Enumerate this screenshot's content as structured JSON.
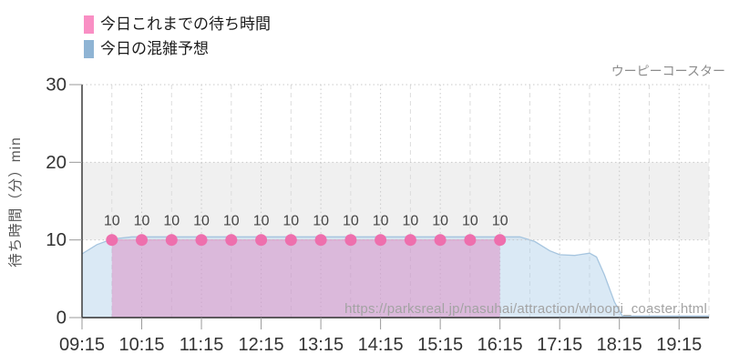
{
  "title": "ウーピーコースター",
  "legend": {
    "actual": "今日これまでの待ち時間",
    "forecast": "今日の混雑予想"
  },
  "watermark": "https://parksreal.jp/nasuhai/attraction/whoopi_coaster.html",
  "chart_data": {
    "type": "area",
    "ylabel": "待ち時間（分）min",
    "y_ticks": [
      0,
      10,
      20,
      30
    ],
    "y_max": 30,
    "band": {
      "from": 10,
      "to": 20
    },
    "x_ticks": [
      "09:15",
      "10:15",
      "11:15",
      "12:15",
      "13:15",
      "14:15",
      "15:15",
      "16:15",
      "17:15",
      "18:15",
      "19:15"
    ],
    "x_range": {
      "start": "09:15",
      "end": "19:45"
    },
    "minor_grid_interval_minutes": 30,
    "grid": true,
    "legend_position": "top-left",
    "series": [
      {
        "id": "forecast",
        "name": "今日の混雑予想",
        "points": [
          [
            "09:15",
            8.2
          ],
          [
            "09:30",
            9.4
          ],
          [
            "09:45",
            10.1
          ],
          [
            "10:05",
            10.4
          ],
          [
            "16:35",
            10.4
          ],
          [
            "16:50",
            9.8
          ],
          [
            "17:05",
            8.6
          ],
          [
            "17:15",
            8.1
          ],
          [
            "17:30",
            8.0
          ],
          [
            "17:45",
            8.3
          ],
          [
            "17:52",
            7.8
          ],
          [
            "18:00",
            5.5
          ],
          [
            "18:10",
            2.0
          ],
          [
            "18:18",
            0.2
          ],
          [
            "19:45",
            0.2
          ]
        ]
      },
      {
        "id": "actual",
        "name": "今日これまでの待ち時間",
        "points": [
          [
            "09:45",
            10
          ],
          [
            "10:15",
            10
          ],
          [
            "10:45",
            10
          ],
          [
            "11:15",
            10
          ],
          [
            "11:45",
            10
          ],
          [
            "12:15",
            10
          ],
          [
            "12:45",
            10
          ],
          [
            "13:15",
            10
          ],
          [
            "13:45",
            10
          ],
          [
            "14:15",
            10
          ],
          [
            "14:45",
            10
          ],
          [
            "15:15",
            10
          ],
          [
            "15:45",
            10
          ],
          [
            "16:15",
            10
          ]
        ],
        "point_labels": true
      }
    ],
    "colors": {
      "actual_dot": "#ee6fad",
      "actual_line": "#e87db8",
      "actual_fill": "rgba(221,118,183,0.42)",
      "forecast_line": "#a6c5df",
      "forecast_fill": "rgba(182,211,236,0.5)",
      "band": "#f0f0f0",
      "grid_major": "#c9c9c9",
      "grid_minor": "#dcdcdc",
      "axis": "#2e2e2e",
      "tick": "#999999",
      "tick_label": "#333333",
      "point_label": "#454545",
      "legend_actual": "#f98fc4",
      "legend_forecast": "#8fb4d4"
    }
  }
}
